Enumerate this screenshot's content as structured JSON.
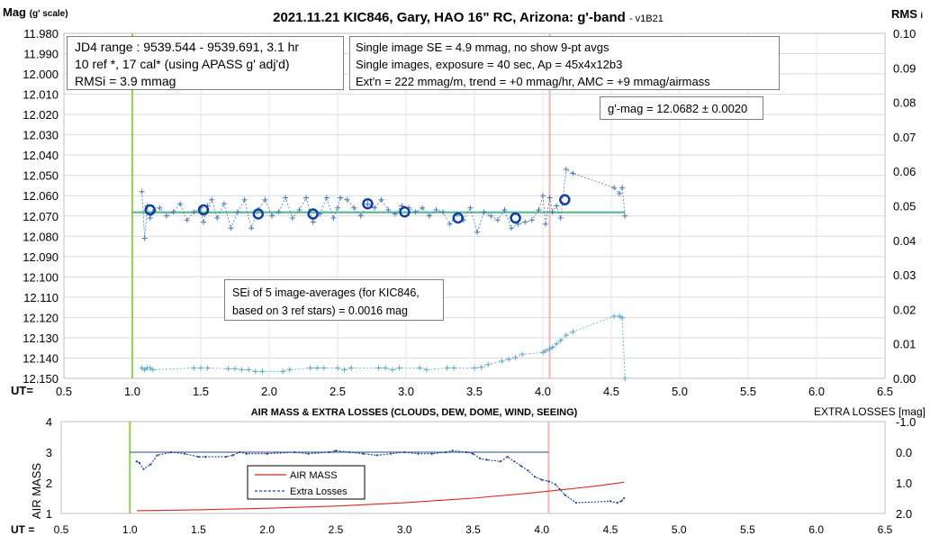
{
  "chart_data": [
    {
      "type": "scatter",
      "title": "2021.11.21 KIC846, Gary, HAO 16\" RC, Arizona: g'-band",
      "version": "- v1B21",
      "ylabel": "Mag",
      "ylabel_unit": "(g' scale)",
      "y2label": "RMS",
      "y2label_sub": "i",
      "xlabel": "UT=",
      "xlim": [
        0.5,
        6.5
      ],
      "ylim": [
        12.15,
        11.98
      ],
      "y2lim": [
        0,
        0.1
      ],
      "grid": true,
      "xticks": [
        "0.5",
        "1.0",
        "1.5",
        "2.0",
        "2.5",
        "3.0",
        "3.5",
        "4.0",
        "4.5",
        "5.0",
        "5.5",
        "6.0",
        "6.5"
      ],
      "yticks": [
        "11.980",
        "11.990",
        "12.000",
        "12.010",
        "12.020",
        "12.030",
        "12.040",
        "12.050",
        "12.060",
        "12.070",
        "12.080",
        "12.090",
        "12.100",
        "12.110",
        "12.120",
        "12.130",
        "12.140",
        "12.150"
      ],
      "y2ticks": [
        "0.10",
        "0.09",
        "0.08",
        "0.07",
        "0.06",
        "0.05",
        "0.04",
        "0.03",
        "0.02",
        "0.01",
        "0.00"
      ],
      "vlines": [
        {
          "x": 1.0,
          "color": "#92d050"
        },
        {
          "x": 4.05,
          "color": "#f4b6b6"
        }
      ],
      "fit": {
        "x": [
          1.0,
          4.6
        ],
        "y": 12.0682,
        "color": "#55b88e"
      },
      "series": [
        {
          "kind": "single",
          "color": "#4a78b0",
          "x": [
            1.07,
            1.09,
            1.11,
            1.13,
            1.15,
            1.2,
            1.25,
            1.3,
            1.35,
            1.4,
            1.45,
            1.5,
            1.52,
            1.55,
            1.58,
            1.62,
            1.67,
            1.72,
            1.77,
            1.82,
            1.87,
            1.92,
            1.97,
            2.02,
            2.07,
            2.12,
            2.17,
            2.22,
            2.27,
            2.32,
            2.37,
            2.42,
            2.47,
            2.5,
            2.52,
            2.57,
            2.62,
            2.67,
            2.72,
            2.77,
            2.82,
            2.87,
            2.92,
            2.97,
            3.02,
            3.07,
            3.12,
            3.17,
            3.22,
            3.27,
            3.32,
            3.37,
            3.42,
            3.47,
            3.52,
            3.57,
            3.62,
            3.67,
            3.72,
            3.77,
            3.82,
            3.87,
            3.92,
            3.97,
            4.0,
            4.02,
            4.05,
            4.07,
            4.1,
            4.13,
            4.17,
            4.22,
            4.52,
            4.56,
            4.58,
            4.6
          ],
          "y": [
            12.058,
            12.081,
            12.065,
            12.071,
            12.068,
            12.066,
            12.07,
            12.068,
            12.064,
            12.072,
            12.068,
            12.066,
            12.073,
            12.065,
            12.062,
            12.071,
            12.064,
            12.076,
            12.068,
            12.062,
            12.076,
            12.067,
            12.062,
            12.07,
            12.068,
            12.061,
            12.071,
            12.067,
            12.061,
            12.073,
            12.069,
            12.061,
            12.071,
            12.066,
            12.061,
            12.062,
            12.066,
            12.07,
            12.064,
            12.066,
            12.062,
            12.067,
            12.069,
            12.065,
            12.066,
            12.068,
            12.066,
            12.07,
            12.067,
            12.068,
            12.074,
            12.069,
            12.072,
            12.066,
            12.078,
            12.068,
            12.07,
            12.072,
            12.067,
            12.076,
            12.074,
            12.073,
            12.072,
            12.067,
            12.06,
            12.074,
            12.061,
            12.068,
            12.065,
            12.071,
            12.047,
            12.049,
            12.056,
            12.059,
            12.056,
            12.07
          ]
        },
        {
          "kind": "avg",
          "color": "#0f3fa0",
          "x": [
            1.13,
            1.52,
            1.92,
            2.32,
            2.72,
            2.99,
            3.38,
            3.8,
            4.16
          ],
          "y": [
            12.067,
            12.067,
            12.069,
            12.069,
            12.064,
            12.068,
            12.071,
            12.071,
            12.062
          ]
        },
        {
          "kind": "rms",
          "color": "#5aa8c8",
          "x": [
            1.07,
            1.09,
            1.11,
            1.13,
            1.15,
            1.45,
            1.5,
            1.55,
            1.7,
            1.75,
            1.8,
            1.85,
            1.9,
            1.95,
            2.1,
            2.15,
            2.3,
            2.35,
            2.4,
            2.5,
            2.55,
            2.6,
            2.8,
            2.85,
            2.9,
            2.95,
            3.1,
            3.15,
            3.3,
            3.35,
            3.5,
            3.55,
            3.6,
            3.7,
            3.75,
            3.8,
            3.85,
            4.0,
            4.02,
            4.05,
            4.07,
            4.1,
            4.13,
            4.17,
            4.22,
            4.52,
            4.56,
            4.58,
            4.6
          ],
          "y": [
            0.003,
            0.0025,
            0.003,
            0.003,
            0.0025,
            0.003,
            0.003,
            0.003,
            0.0028,
            0.0028,
            0.0025,
            0.0025,
            0.002,
            0.002,
            0.002,
            0.0025,
            0.003,
            0.003,
            0.003,
            0.003,
            0.0025,
            0.003,
            0.003,
            0.003,
            0.0025,
            0.003,
            0.003,
            0.0025,
            0.003,
            0.003,
            0.003,
            0.0032,
            0.004,
            0.005,
            0.0055,
            0.006,
            0.007,
            0.0075,
            0.008,
            0.0085,
            0.009,
            0.01,
            0.011,
            0.0125,
            0.0135,
            0.018,
            0.018,
            0.0175,
            0.0
          ]
        }
      ],
      "annotations": [
        {
          "id": "info_left",
          "lines": [
            "JD4 range : 9539.544 - 9539.691,  3.1  hr",
            "10 ref *, 17 cal* (using APASS g' adj'd)",
            "RMSi = 3.9 mmag"
          ]
        },
        {
          "id": "info_right",
          "lines": [
            "Single image SE = 4.9 mmag, no show  9-pt avgs",
            "Single images, exposure = 40 sec, Ap = 45x4x12b3",
            "Ext'n = 222 mmag/m, trend = +0 mmag/hr, AMC = +9 mmag/airmass"
          ]
        },
        {
          "id": "gmag",
          "lines": [
            "g'-mag = 12.0682 ± 0.0020"
          ]
        },
        {
          "id": "sei",
          "lines": [
            "SEi of 5 image-averages (for KIC846,",
            "based on 3 ref stars) = 0.0016 mag"
          ]
        }
      ]
    },
    {
      "type": "line",
      "title": "AIR MASS & EXTRA LOSSES (CLOUDS, DEW, DOME, WIND, SEEING)",
      "ylabel": "AIR MASS",
      "y2label": "EXTRA LOSSES [mag]",
      "xlabel": "UT =",
      "xlim": [
        0.5,
        6.5
      ],
      "ylim": [
        1,
        4
      ],
      "y2lim": [
        2.0,
        -1.0
      ],
      "xticks": [
        "0.5",
        "1.0",
        "1.5",
        "2.0",
        "2.5",
        "3.0",
        "3.5",
        "4.0",
        "4.5",
        "5.0",
        "5.5",
        "6.0",
        "6.5"
      ],
      "yticks": [
        "4",
        "3",
        "2",
        "1"
      ],
      "y2ticks": [
        "-1.0",
        "0.0",
        "1.0",
        "2.0"
      ],
      "vlines": [
        {
          "x": 1.0,
          "color": "#92d050"
        },
        {
          "x": 4.05,
          "color": "#f4b6b6"
        }
      ],
      "zero_line": {
        "x": [
          1.0,
          4.05
        ],
        "y2": 0.0,
        "color": "#1f4e79"
      },
      "legend": [
        "AIR MASS",
        "Extra Losses"
      ],
      "series": [
        {
          "name": "AIR MASS",
          "color": "#d62a1e",
          "dash": false,
          "x": [
            1.05,
            1.5,
            2.0,
            2.5,
            3.0,
            3.5,
            3.9,
            4.2,
            4.4,
            4.6
          ],
          "y": [
            1.09,
            1.12,
            1.17,
            1.24,
            1.35,
            1.5,
            1.66,
            1.8,
            1.9,
            2.02
          ]
        },
        {
          "name": "Extra Losses",
          "color": "#1f3da8",
          "dash": true,
          "x": [
            1.05,
            1.07,
            1.1,
            1.15,
            1.2,
            1.3,
            1.4,
            1.5,
            1.55,
            1.7,
            1.75,
            1.8,
            1.85,
            2.0,
            2.2,
            2.3,
            2.45,
            2.5,
            2.6,
            2.7,
            2.8,
            2.9,
            3.0,
            3.1,
            3.2,
            3.3,
            3.35,
            3.45,
            3.5,
            3.55,
            3.6,
            3.7,
            3.75,
            3.8,
            3.85,
            3.9,
            3.95,
            4.0,
            4.05,
            4.1,
            4.13,
            4.17,
            4.25,
            4.5,
            4.55,
            4.58,
            4.6
          ],
          "y2": [
            0.3,
            0.35,
            0.55,
            0.4,
            0.1,
            0.0,
            0.05,
            0.15,
            0.15,
            0.15,
            0.1,
            0.0,
            0.05,
            0.05,
            0.0,
            0.05,
            0.0,
            -0.05,
            0.0,
            0.05,
            0.1,
            0.05,
            0.0,
            0.05,
            0.05,
            0.0,
            -0.05,
            0.0,
            0.05,
            0.2,
            0.25,
            0.3,
            0.15,
            0.3,
            0.45,
            0.6,
            0.8,
            0.9,
            0.95,
            1.05,
            1.2,
            1.4,
            1.65,
            1.6,
            1.65,
            1.6,
            1.5
          ]
        }
      ]
    }
  ]
}
